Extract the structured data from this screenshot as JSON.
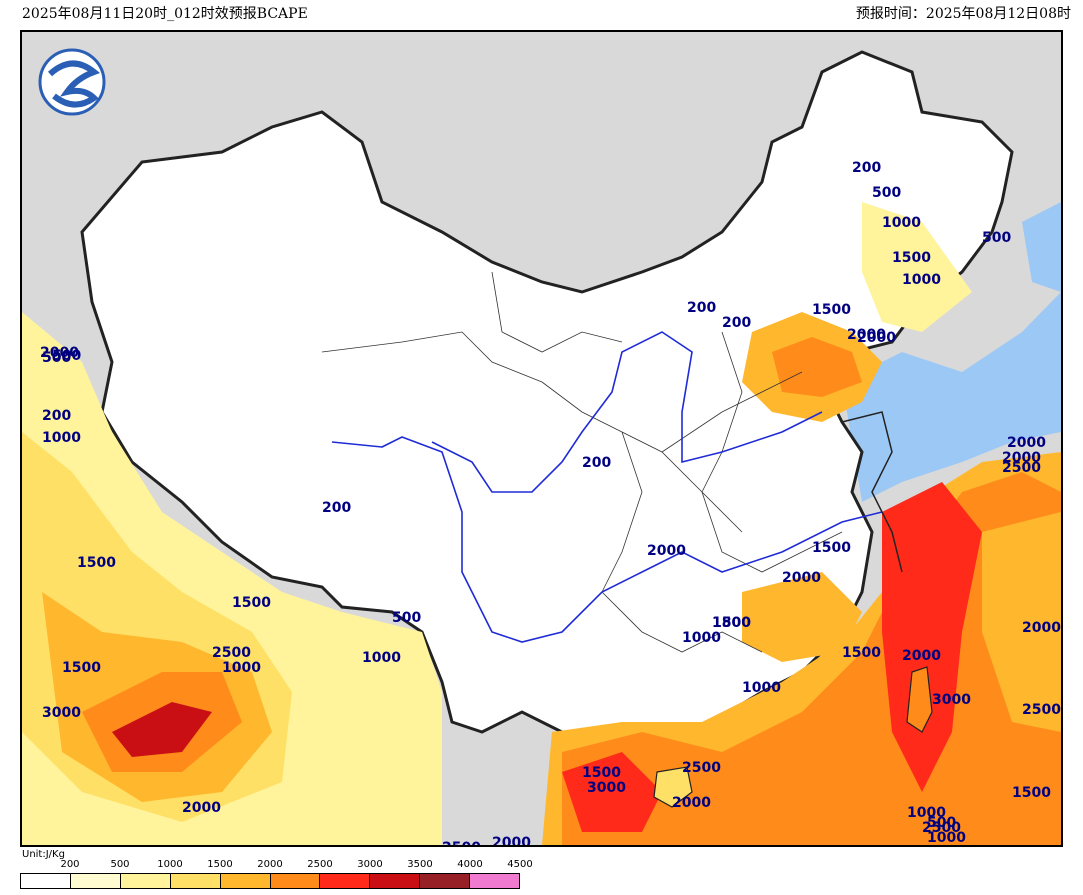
{
  "header": {
    "left": "2025年08月11日20时_012时效预报BCAPE",
    "right": "预报时间：2025年08月12日08时"
  },
  "legend": {
    "unit": "Unit:J/Kg",
    "ticks": [
      "200",
      "500",
      "1000",
      "1500",
      "2000",
      "2500",
      "3000",
      "3500",
      "4000",
      "4500"
    ],
    "colors": [
      "#ffffff",
      "#fffbd0",
      "#fff39b",
      "#ffe066",
      "#ffb72e",
      "#ff8c1a",
      "#ff2a1a",
      "#c90f14",
      "#972027",
      "#f07ad0"
    ]
  },
  "map": {
    "labels": [
      "200",
      "500",
      "1000",
      "1500",
      "2000",
      "200",
      "200",
      "1500",
      "2000",
      "500",
      "1000",
      "500",
      "200",
      "500",
      "200",
      "200",
      "1500",
      "2000",
      "1500",
      "1000",
      "1000",
      "1000",
      "1500",
      "2000",
      "2000",
      "2500",
      "1000",
      "1500",
      "2000",
      "500",
      "2500",
      "2000",
      "1500",
      "2500",
      "3000",
      "2000",
      "1500",
      "2000",
      "2500",
      "3000",
      "1500",
      "2500",
      "3000",
      "2000",
      "2500",
      "2000",
      "1000",
      "500",
      "1000",
      "1000",
      "1800",
      "1500",
      "2000"
    ]
  }
}
